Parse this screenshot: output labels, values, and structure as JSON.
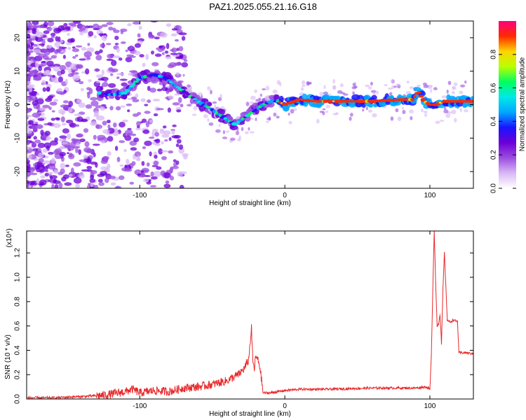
{
  "title": "PAZ1.2025.055.21.16.G18",
  "colors": {
    "line": "#e8282a",
    "colormap": [
      "#ffffff",
      "#d9b8f5",
      "#9b4de0",
      "#6b00d8",
      "#1a14ff",
      "#00a8ff",
      "#00e8e8",
      "#00ff60",
      "#b8ff00",
      "#ffd400",
      "#ff2a00",
      "#ff0080"
    ]
  },
  "chart_data": [
    {
      "type": "heatmap",
      "title": "PAZ1.2025.055.21.16.G18",
      "xlabel": "Height of straight line (km)",
      "ylabel": "Frequency (Hz)",
      "xlim": [
        -178,
        130
      ],
      "ylim": [
        -25,
        25
      ],
      "xticks": [
        -100,
        0,
        100
      ],
      "xtick_labels": [
        "-100",
        "0",
        "100"
      ],
      "yticks": [
        -20,
        -10,
        0,
        10,
        20
      ],
      "ytick_labels": [
        "-20",
        "-10",
        "0",
        "10",
        "20"
      ],
      "ridge": {
        "x": [
          -128,
          -120,
          -110,
          -100,
          -90,
          -82,
          -75,
          -68,
          -60,
          -52,
          -45,
          -38,
          -34,
          -30,
          -25,
          -20,
          -15,
          -10,
          -5,
          0,
          10,
          20,
          40,
          60,
          80,
          88,
          92,
          96,
          100,
          104,
          110,
          130
        ],
        "freq": [
          3.5,
          3,
          3.5,
          8,
          9,
          8,
          5.5,
          3.5,
          1,
          -1,
          -3,
          -5,
          -6,
          -4.5,
          -3,
          -1.5,
          0,
          1,
          1,
          0,
          1.5,
          1,
          1,
          1,
          1.5,
          1.5,
          4,
          1,
          0,
          0,
          1,
          1
        ]
      },
      "colorbar": {
        "label": "Normalized spectral amplitude",
        "range": [
          0,
          1
        ],
        "ticks": [
          0,
          0.2,
          0.4,
          0.6,
          0.8
        ],
        "tick_labels": [
          "0.0",
          "0.2",
          "0.4",
          "0.6",
          "0.8"
        ]
      }
    },
    {
      "type": "line",
      "xlabel": "Height of straight line (km)",
      "ylabel": "SNR (10 * v/v)",
      "y_multiplier": "(x10⁴)",
      "xlim": [
        -178,
        130
      ],
      "ylim": [
        0,
        1.38
      ],
      "xticks": [
        -100,
        0,
        100
      ],
      "xtick_labels": [
        "-100",
        "0",
        "100"
      ],
      "yticks": [
        0,
        0.2,
        0.4,
        0.6,
        0.8,
        1.0,
        1.2
      ],
      "ytick_labels": [
        "0.0",
        "0.2",
        "0.4",
        "0.6",
        "0.8",
        "1.0",
        "1.2"
      ],
      "series": [
        {
          "x": [
            -178,
            -160,
            -140,
            -125,
            -110,
            -105,
            -100,
            -90,
            -80,
            -70,
            -60,
            -50,
            -40,
            -32,
            -28,
            -25,
            -23,
            -22,
            -21,
            -20,
            -19,
            -18,
            -17,
            -15,
            -10,
            -5,
            0,
            10,
            30,
            60,
            90,
            97,
            100,
            101,
            102,
            103,
            104,
            105,
            106,
            107,
            108,
            109,
            110,
            112,
            114,
            116,
            118,
            119,
            120,
            125,
            130
          ],
          "y": [
            0.01,
            0.01,
            0.02,
            0.03,
            0.06,
            0.08,
            0.05,
            0.07,
            0.06,
            0.09,
            0.1,
            0.12,
            0.15,
            0.2,
            0.25,
            0.32,
            0.58,
            0.3,
            0.25,
            0.35,
            0.33,
            0.3,
            0.25,
            0.05,
            0.05,
            0.06,
            0.07,
            0.08,
            0.08,
            0.09,
            0.09,
            0.1,
            0.08,
            0.35,
            0.9,
            1.38,
            0.95,
            0.6,
            0.62,
            0.7,
            0.45,
            0.9,
            1.2,
            0.65,
            0.63,
            0.65,
            0.64,
            0.64,
            0.38,
            0.38,
            0.37
          ]
        }
      ]
    }
  ]
}
